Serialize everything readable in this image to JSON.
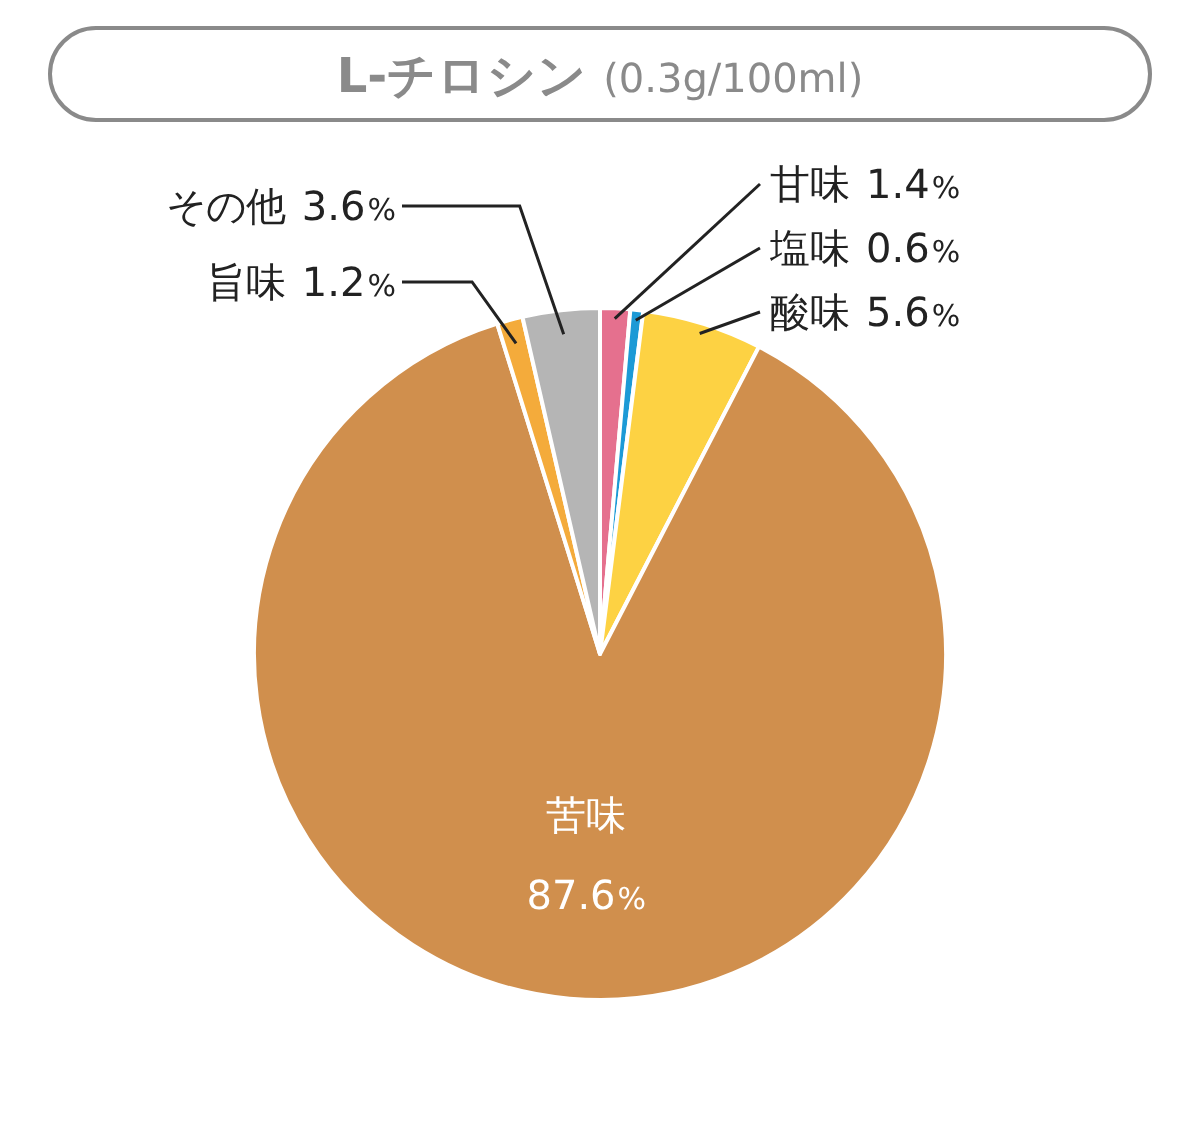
{
  "chart_data": {
    "type": "pie",
    "title": "L-チロシン",
    "subtitle": "(0.3g/100ml)",
    "categories": [
      "甘味",
      "塩味",
      "酸味",
      "苦味",
      "旨味",
      "その他"
    ],
    "values": [
      1.4,
      0.6,
      5.6,
      87.6,
      1.2,
      3.6
    ],
    "colors": [
      "#e5708e",
      "#1c9ad6",
      "#fdd243",
      "#d08f4d",
      "#f4ab3b",
      "#b5b5b5"
    ],
    "value_labels": [
      "1.4%",
      "0.6%",
      "5.6%",
      "87.6%",
      "1.2%",
      "3.6%"
    ]
  }
}
